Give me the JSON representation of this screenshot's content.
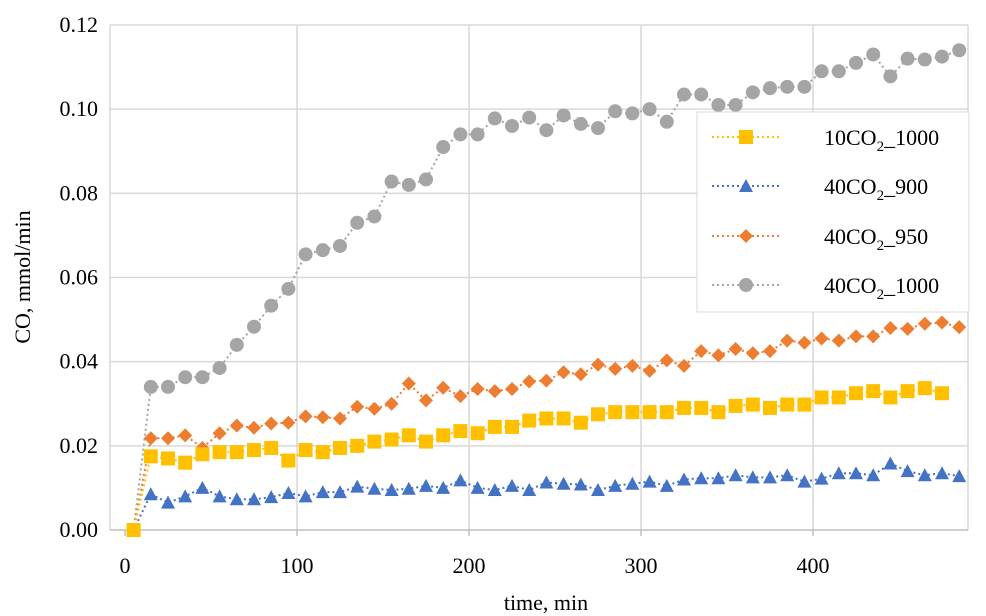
{
  "chart_data": {
    "type": "line",
    "xlabel": "time, min",
    "ylabel": "CO, mmol/min",
    "xlim": [
      0,
      480
    ],
    "ylim": [
      0,
      0.12
    ],
    "x_ticks": [
      "0",
      "100",
      "200",
      "300",
      "400"
    ],
    "y_ticks": [
      "0.00",
      "0.02",
      "0.04",
      "0.06",
      "0.08",
      "0.10",
      "0.12"
    ],
    "grid": true,
    "legend_position": "right",
    "series": [
      {
        "name": "10CO2_1000",
        "label_main": "10CO",
        "label_sub": "2",
        "label_tail": "_1000",
        "color": "#FFC000",
        "marker": "square",
        "x": [
          5,
          15,
          25,
          35,
          45,
          55,
          65,
          75,
          85,
          95,
          105,
          115,
          125,
          135,
          145,
          155,
          165,
          175,
          185,
          195,
          205,
          215,
          225,
          235,
          245,
          255,
          265,
          275,
          285,
          295,
          305,
          315,
          325,
          335,
          345,
          355,
          365,
          375,
          385,
          395,
          405,
          415,
          425,
          435,
          445,
          455,
          465,
          475
        ],
        "y": [
          0.0,
          0.0175,
          0.017,
          0.016,
          0.018,
          0.0185,
          0.0185,
          0.019,
          0.0195,
          0.0165,
          0.019,
          0.0185,
          0.0195,
          0.02,
          0.021,
          0.0215,
          0.0225,
          0.021,
          0.0225,
          0.0235,
          0.023,
          0.0245,
          0.0245,
          0.026,
          0.0265,
          0.0265,
          0.0255,
          0.0275,
          0.028,
          0.028,
          0.028,
          0.028,
          0.029,
          0.029,
          0.028,
          0.0295,
          0.0298,
          0.029,
          0.0298,
          0.0298,
          0.0315,
          0.0315,
          0.0325,
          0.033,
          0.0315,
          0.033,
          0.0337,
          0.0325
        ]
      },
      {
        "name": "40CO2_900",
        "label_main": "40CO",
        "label_sub": "2",
        "label_tail": "_900",
        "color": "#4472C4",
        "marker": "triangle",
        "x": [
          5,
          15,
          25,
          35,
          45,
          55,
          65,
          75,
          85,
          95,
          105,
          115,
          125,
          135,
          145,
          155,
          165,
          175,
          185,
          195,
          205,
          215,
          225,
          235,
          245,
          255,
          265,
          275,
          285,
          295,
          305,
          315,
          325,
          335,
          345,
          355,
          365,
          375,
          385,
          395,
          405,
          415,
          425,
          435,
          445,
          455,
          465,
          475,
          485
        ],
        "y": [
          0.0,
          0.0085,
          0.0065,
          0.008,
          0.01,
          0.008,
          0.0073,
          0.0073,
          0.0078,
          0.0088,
          0.008,
          0.009,
          0.009,
          0.0103,
          0.0098,
          0.0095,
          0.0098,
          0.0105,
          0.01,
          0.0118,
          0.01,
          0.0095,
          0.0105,
          0.0095,
          0.0113,
          0.011,
          0.0108,
          0.0095,
          0.0105,
          0.011,
          0.0115,
          0.0105,
          0.012,
          0.0123,
          0.0123,
          0.013,
          0.0125,
          0.0125,
          0.013,
          0.0115,
          0.0122,
          0.0135,
          0.0135,
          0.013,
          0.0158,
          0.014,
          0.013,
          0.0135,
          0.0128
        ]
      },
      {
        "name": "40CO2_950",
        "label_main": "40CO",
        "label_sub": "2",
        "label_tail": "_950",
        "color": "#ED7D31",
        "marker": "diamond",
        "x": [
          5,
          15,
          25,
          35,
          45,
          55,
          65,
          75,
          85,
          95,
          105,
          115,
          125,
          135,
          145,
          155,
          165,
          175,
          185,
          195,
          205,
          215,
          225,
          235,
          245,
          255,
          265,
          275,
          285,
          295,
          305,
          315,
          325,
          335,
          345,
          355,
          365,
          375,
          385,
          395,
          405,
          415,
          425,
          435,
          445,
          455,
          465,
          475,
          485
        ],
        "y": [
          0.0,
          0.0218,
          0.0218,
          0.0225,
          0.0195,
          0.023,
          0.0248,
          0.0243,
          0.0253,
          0.0255,
          0.027,
          0.0268,
          0.0265,
          0.0293,
          0.0288,
          0.03,
          0.0348,
          0.0308,
          0.0338,
          0.0318,
          0.0335,
          0.033,
          0.0335,
          0.0353,
          0.0355,
          0.0375,
          0.037,
          0.0393,
          0.0383,
          0.039,
          0.0378,
          0.0403,
          0.039,
          0.0425,
          0.0415,
          0.043,
          0.042,
          0.0425,
          0.045,
          0.0445,
          0.0455,
          0.045,
          0.046,
          0.046,
          0.048,
          0.0478,
          0.049,
          0.0493,
          0.0482
        ]
      },
      {
        "name": "40CO2_1000",
        "label_main": "40CO",
        "label_sub": "2",
        "label_tail": "_1000",
        "color": "#A5A5A5",
        "marker": "circle",
        "x": [
          5,
          15,
          25,
          35,
          45,
          55,
          65,
          75,
          85,
          95,
          105,
          115,
          125,
          135,
          145,
          155,
          165,
          175,
          185,
          195,
          205,
          215,
          225,
          235,
          245,
          255,
          265,
          275,
          285,
          295,
          305,
          315,
          325,
          335,
          345,
          355,
          365,
          375,
          385,
          395,
          405,
          415,
          425,
          435,
          445,
          455,
          465,
          475,
          485
        ],
        "y": [
          0.0,
          0.034,
          0.034,
          0.0363,
          0.0363,
          0.0385,
          0.044,
          0.0483,
          0.0533,
          0.0573,
          0.0655,
          0.0665,
          0.0675,
          0.073,
          0.0745,
          0.0828,
          0.082,
          0.0833,
          0.091,
          0.094,
          0.094,
          0.0978,
          0.096,
          0.098,
          0.095,
          0.0985,
          0.0965,
          0.0955,
          0.0995,
          0.099,
          0.1,
          0.097,
          0.1035,
          0.1035,
          0.101,
          0.101,
          0.104,
          0.105,
          0.1053,
          0.1053,
          0.109,
          0.109,
          0.111,
          0.113,
          0.1078,
          0.112,
          0.1118,
          0.1125,
          0.114
        ]
      }
    ]
  }
}
